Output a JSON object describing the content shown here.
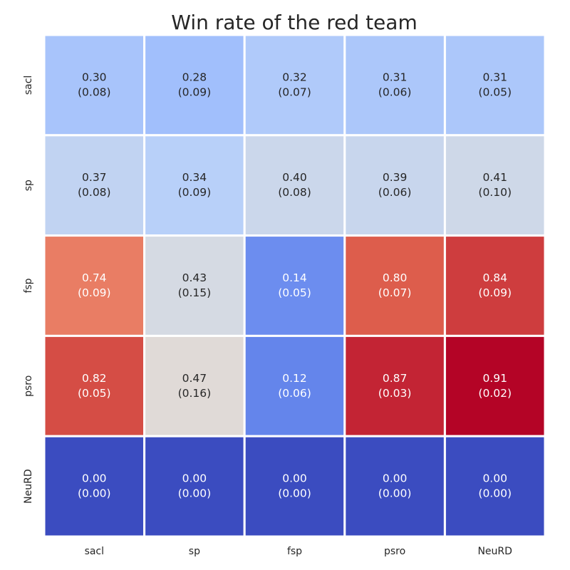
{
  "chart_data": {
    "type": "heatmap",
    "title": "Win rate of the red team",
    "xlabel": "",
    "ylabel": "",
    "x_categories": [
      "sacl",
      "sp",
      "fsp",
      "psro",
      "NeuRD"
    ],
    "y_categories": [
      "sacl",
      "sp",
      "fsp",
      "psro",
      "NeuRD"
    ],
    "colormap": "coolwarm",
    "color_range": [
      0.0,
      0.91
    ],
    "colorbar": false,
    "values": [
      [
        0.3,
        0.28,
        0.32,
        0.31,
        0.31
      ],
      [
        0.37,
        0.34,
        0.4,
        0.39,
        0.41
      ],
      [
        0.74,
        0.43,
        0.14,
        0.8,
        0.84
      ],
      [
        0.82,
        0.47,
        0.12,
        0.87,
        0.91
      ],
      [
        0.0,
        0.0,
        0.0,
        0.0,
        0.0
      ]
    ],
    "std": [
      [
        0.08,
        0.09,
        0.07,
        0.06,
        0.05
      ],
      [
        0.08,
        0.09,
        0.08,
        0.06,
        0.1
      ],
      [
        0.09,
        0.15,
        0.05,
        0.07,
        0.09
      ],
      [
        0.05,
        0.16,
        0.06,
        0.03,
        0.02
      ],
      [
        0.0,
        0.0,
        0.0,
        0.0,
        0.0
      ]
    ],
    "cell_label_format": "value (std)",
    "colors": {
      "text_dark": "#262626",
      "text_light": "#ffffff",
      "cell_border": "#ffffff"
    }
  }
}
